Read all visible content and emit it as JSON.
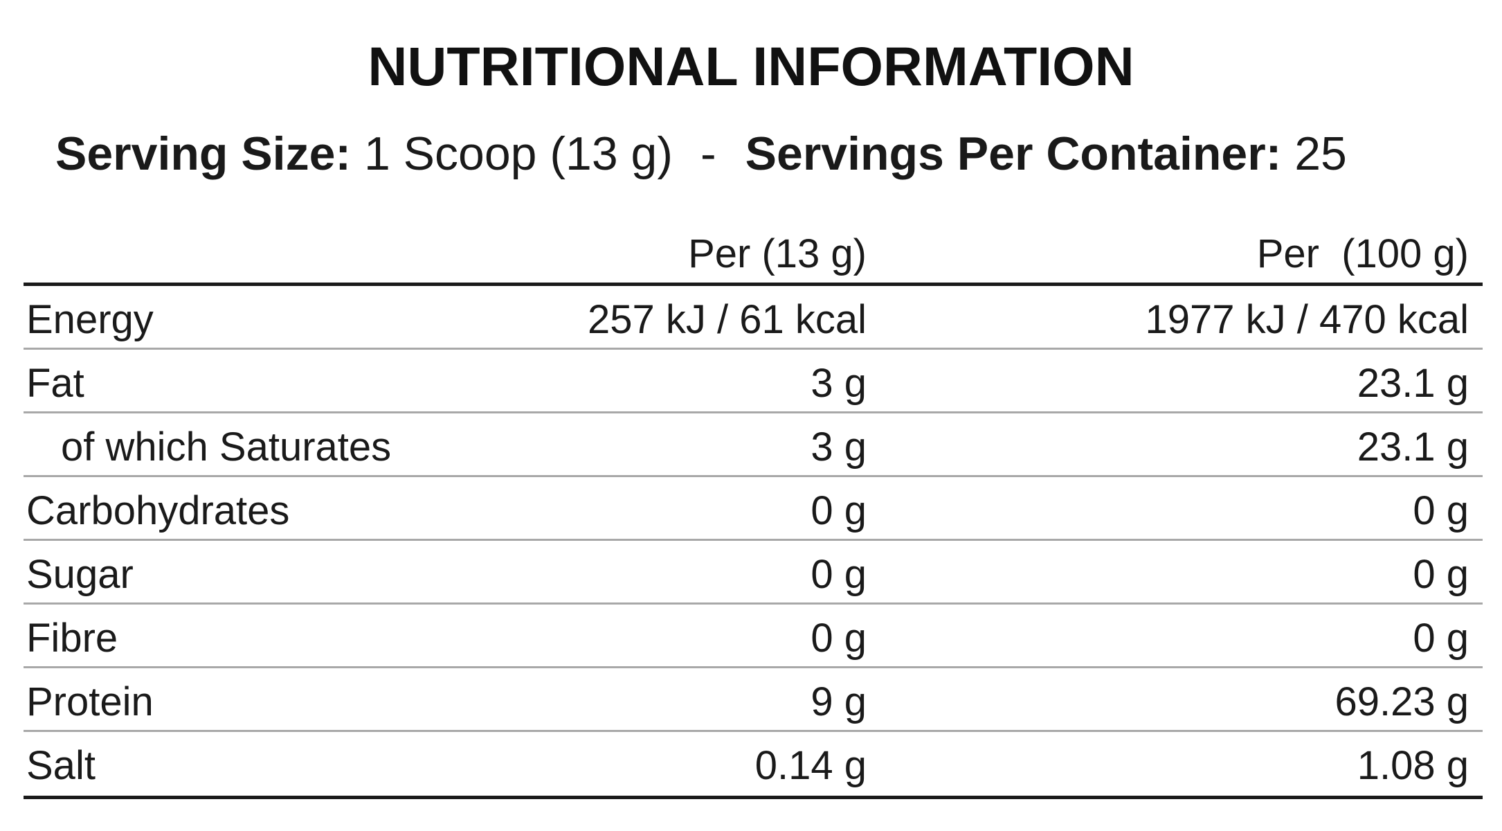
{
  "title": "NUTRITIONAL INFORMATION",
  "serving": {
    "size_label": "Serving Size:",
    "size_value": "1 Scoop (13 g)",
    "separator": "-",
    "per_container_label": "Servings Per Container:",
    "per_container_value": "25"
  },
  "table": {
    "headers": [
      "",
      "Per (13 g)",
      "Per  (100 g)"
    ],
    "rows": [
      {
        "name": "Energy",
        "per_serving": "257 kJ / 61 kcal",
        "per_100g": "1977 kJ / 470 kcal"
      },
      {
        "name": "Fat",
        "per_serving": "3 g",
        "per_100g": "23.1 g"
      },
      {
        "name": "of which Saturates",
        "per_serving": "3 g",
        "per_100g": "23.1 g"
      },
      {
        "name": "Carbohydrates",
        "per_serving": "0 g",
        "per_100g": "0 g"
      },
      {
        "name": "Sugar",
        "per_serving": "0 g",
        "per_100g": "0 g"
      },
      {
        "name": "Fibre",
        "per_serving": "0 g",
        "per_100g": "0 g"
      },
      {
        "name": "Protein",
        "per_serving": "9 g",
        "per_100g": "69.23 g"
      },
      {
        "name": "Salt",
        "per_serving": "0.14 g",
        "per_100g": "1.08 g"
      }
    ]
  }
}
